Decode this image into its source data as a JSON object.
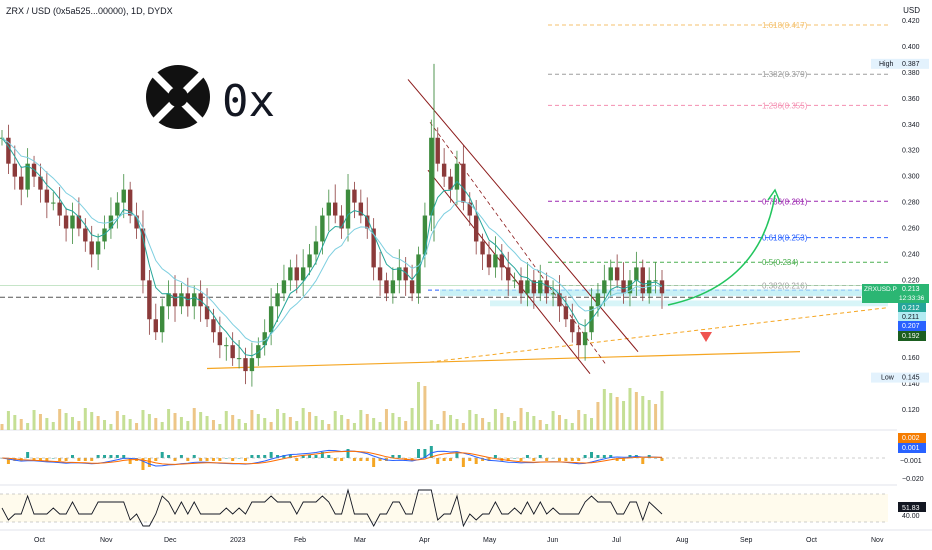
{
  "header": {
    "symbol_title": "ZRX / USD (0x5a525...00000), 1D, DYDX",
    "currency": "USD"
  },
  "logo": {
    "text": "0x"
  },
  "colors": {
    "up": "#26a69a",
    "down": "#ef5350",
    "candle_up": "#3d8b3d",
    "candle_down": "#8b3a3a",
    "ema_fast": "#26a69a",
    "ema_slow": "#7ecfe0",
    "channel": "#8b1a1a",
    "support": "#f5a623",
    "arrow_up": "#22c55e",
    "arrow_down": "#ef5350",
    "macd_line": "#2962ff",
    "signal_line": "#ff6d00",
    "rsi_line": "#131722",
    "highlight_zone": "#b2ebf2"
  },
  "price_axis": {
    "ticks": [
      "0.420",
      "0.400",
      "0.380",
      "0.360",
      "0.340",
      "0.320",
      "0.300",
      "0.280",
      "0.260",
      "0.240",
      "0.220",
      "0.200",
      "0.180",
      "0.160",
      "0.140",
      "0.120"
    ],
    "high_label": "High",
    "high_value": "0.387",
    "low_label": "Low",
    "low_value": "0.145",
    "symbol_tag": "ZRXUSD.P",
    "last_price": "0.213",
    "countdown": "12:33:36",
    "tag_212": "0.212",
    "tag_211": "0.211",
    "tag_207": "0.207",
    "tag_192": "0.192"
  },
  "macd_axis": {
    "tags": [
      "0.002",
      "0.001",
      "−0.001"
    ],
    "tick": "−0.020"
  },
  "rsi_axis": {
    "value": "51.83",
    "tick": "40.00"
  },
  "time_axis": {
    "labels": [
      "Oct",
      "Nov",
      "Dec",
      "2023",
      "Feb",
      "Mar",
      "Apr",
      "May",
      "Jun",
      "Jul",
      "Aug",
      "Sep",
      "Oct",
      "Nov"
    ]
  },
  "fib_levels": [
    {
      "label": "1.618(0.417)",
      "price": 0.417,
      "color": "#f5c16c"
    },
    {
      "label": "1.382(0.379)",
      "price": 0.379,
      "color": "#9e9e9e"
    },
    {
      "label": "1.236(0.355)",
      "price": 0.355,
      "color": "#f48fb1"
    },
    {
      "label": "0.786(0.281)",
      "price": 0.281,
      "color": "#9c27b0"
    },
    {
      "label": "0.618(0.253)",
      "price": 0.253,
      "color": "#2962ff"
    },
    {
      "label": "0.5(0.234)",
      "price": 0.234,
      "color": "#4caf50"
    },
    {
      "label": "0.382(0.216)",
      "price": 0.216,
      "color": "#9e9e9e"
    }
  ],
  "chart_data": {
    "type": "candlestick",
    "title": "ZRX / USD (0x5a525...00000), 1D, DYDX",
    "y_range": [
      0.11,
      0.43
    ],
    "x_labels": [
      "Oct",
      "Nov",
      "Dec",
      "2023",
      "Feb",
      "Mar",
      "Apr",
      "May",
      "Jun",
      "Jul",
      "Aug",
      "Sep",
      "Oct",
      "Nov"
    ],
    "close_series": [
      0.33,
      0.31,
      0.3,
      0.29,
      0.31,
      0.3,
      0.29,
      0.28,
      0.28,
      0.27,
      0.26,
      0.27,
      0.26,
      0.25,
      0.24,
      0.25,
      0.26,
      0.27,
      0.28,
      0.29,
      0.27,
      0.26,
      0.22,
      0.19,
      0.18,
      0.2,
      0.21,
      0.2,
      0.21,
      0.2,
      0.21,
      0.2,
      0.19,
      0.18,
      0.17,
      0.17,
      0.16,
      0.16,
      0.15,
      0.16,
      0.17,
      0.18,
      0.2,
      0.21,
      0.22,
      0.23,
      0.22,
      0.23,
      0.24,
      0.25,
      0.27,
      0.28,
      0.27,
      0.26,
      0.29,
      0.28,
      0.27,
      0.26,
      0.23,
      0.22,
      0.21,
      0.22,
      0.23,
      0.22,
      0.21,
      0.24,
      0.27,
      0.33,
      0.31,
      0.3,
      0.29,
      0.31,
      0.28,
      0.27,
      0.25,
      0.24,
      0.23,
      0.24,
      0.23,
      0.22,
      0.22,
      0.21,
      0.22,
      0.21,
      0.22,
      0.21,
      0.21,
      0.2,
      0.19,
      0.18,
      0.17,
      0.18,
      0.2,
      0.21,
      0.22,
      0.23,
      0.22,
      0.21,
      0.22,
      0.23,
      0.21,
      0.22,
      0.22,
      0.21
    ],
    "high": 0.387,
    "low": 0.145,
    "last": 0.213
  }
}
